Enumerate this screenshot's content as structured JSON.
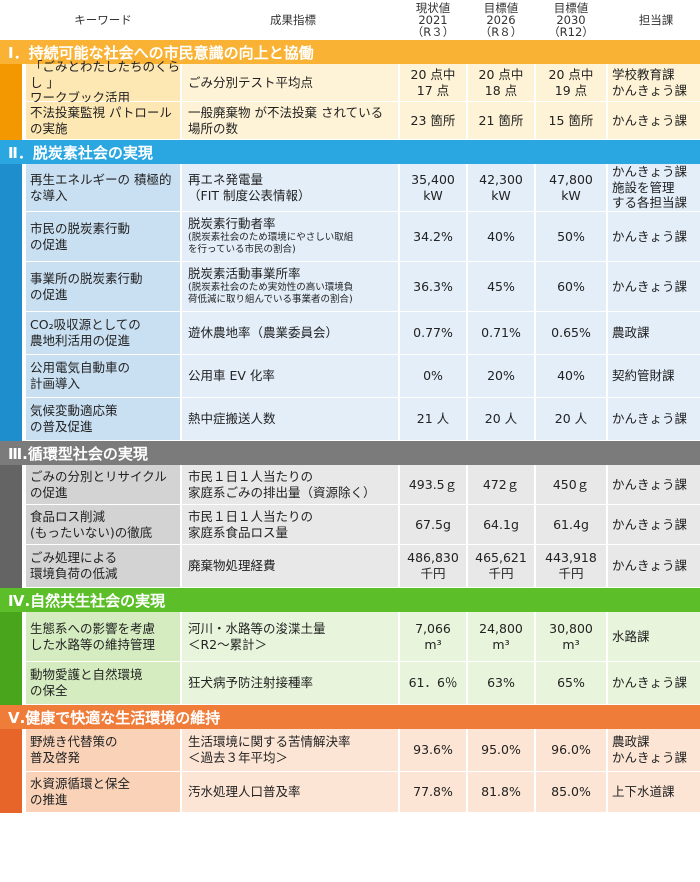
{
  "header": {
    "keyword": "キーワード",
    "indicator": "成果指標",
    "current": [
      "現状値",
      "2021",
      "（R３）"
    ],
    "target2026": [
      "目標値",
      "2026",
      "（R８）"
    ],
    "target2030": [
      "目標値",
      "2030",
      "（R12）"
    ],
    "dept": "担当課"
  },
  "sections": [
    {
      "title": "Ⅰ．持続可能な社会への市民意識の向上と協働",
      "colors": {
        "head": "#f9b233",
        "bar": "#f39800",
        "rowA": "#fde7b3",
        "rowB": "#fef3d6",
        "text": "#ffffff"
      },
      "rows": [
        {
          "keyword": [
            "「ごみとわたしたちのくらし 」",
            "ワークブック活用"
          ],
          "indicator": [
            "ごみ分別テスト平均点"
          ],
          "v1": [
            "20 点中",
            "17 点"
          ],
          "v2": [
            "20 点中",
            "18 点"
          ],
          "v3": [
            "20 点中",
            "19 点"
          ],
          "dept": [
            "学校教育課",
            "かんきょう課"
          ]
        },
        {
          "keyword": [
            "不法投棄監視 パトロール",
            "の実施"
          ],
          "indicator": [
            "一般廃棄物 が不法投棄 されている",
            "場所の数"
          ],
          "v1": [
            "23 箇所"
          ],
          "v2": [
            "21 箇所"
          ],
          "v3": [
            "15 箇所"
          ],
          "dept": [
            "かんきょう課"
          ]
        }
      ]
    },
    {
      "title": "Ⅱ．脱炭素社会の実現",
      "colors": {
        "head": "#2aa7e0",
        "bar": "#1e8fcc",
        "rowA": "#c9dff2",
        "rowB": "#e3eef9",
        "text": "#ffffff"
      },
      "rows": [
        {
          "keyword": [
            "再生エネルギーの 積極的",
            "な導入"
          ],
          "indicator": [
            "再エネ発電量",
            "（FIT 制度公表情報）"
          ],
          "v1": [
            "35,400",
            "kW"
          ],
          "v2": [
            "42,300",
            "kW"
          ],
          "v3": [
            "47,800",
            "kW"
          ],
          "dept": [
            "かんきょう課",
            "施設を管理",
            "する各担当課"
          ]
        },
        {
          "keyword": [
            "市民の脱炭素行動",
            "の促進"
          ],
          "indicator": [
            "脱炭素行動者率"
          ],
          "indicator_note": [
            "(脱炭素社会のため環境にやさしい取組",
            "を行っている市民の割合)"
          ],
          "v1": [
            "34.2%"
          ],
          "v2": [
            "40%"
          ],
          "v3": [
            "50%"
          ],
          "dept": [
            "かんきょう課"
          ]
        },
        {
          "keyword": [
            "事業所の脱炭素行動",
            "の促進"
          ],
          "indicator": [
            "脱炭素活動事業所率"
          ],
          "indicator_note": [
            "(脱炭素社会のため実効性の高い環境負",
            "荷低減に取り組んでいる事業者の割合)"
          ],
          "v1": [
            "36.3%"
          ],
          "v2": [
            "45%"
          ],
          "v3": [
            "60%"
          ],
          "dept": [
            "かんきょう課"
          ]
        },
        {
          "keyword": [
            "CO₂吸収源としての",
            "農地利活用の促進"
          ],
          "indicator": [
            "遊休農地率（農業委員会）"
          ],
          "v1": [
            "0.77%"
          ],
          "v2": [
            "0.71%"
          ],
          "v3": [
            "0.65%"
          ],
          "dept": [
            "農政課"
          ]
        },
        {
          "keyword": [
            "公用電気自動車の",
            "計画導入"
          ],
          "indicator": [
            "公用車 EV 化率"
          ],
          "v1": [
            "0%"
          ],
          "v2": [
            "20%"
          ],
          "v3": [
            "40%"
          ],
          "dept": [
            "契約管財課"
          ]
        },
        {
          "keyword": [
            "気候変動適応策",
            "の普及促進"
          ],
          "indicator": [
            "熱中症搬送人数"
          ],
          "v1": [
            "21 人"
          ],
          "v2": [
            "20 人"
          ],
          "v3": [
            "20 人"
          ],
          "dept": [
            "かんきょう課"
          ]
        }
      ]
    },
    {
      "title": "Ⅲ.循環型社会の実現",
      "colors": {
        "head": "#7b7b7b",
        "bar": "#646464",
        "rowA": "#d3d3d3",
        "rowB": "#e8e8e8",
        "text": "#ffffff"
      },
      "rows": [
        {
          "keyword": [
            "ごみの分別とリサイクル",
            "の促進"
          ],
          "indicator": [
            "市民１日１人当たりの",
            "家庭系ごみの排出量（資源除く）"
          ],
          "v1": [
            "493.5ｇ"
          ],
          "v2": [
            "472ｇ"
          ],
          "v3": [
            "450ｇ"
          ],
          "dept": [
            "かんきょう課"
          ]
        },
        {
          "keyword": [
            "食品ロス削減",
            "(もったいない)の徹底"
          ],
          "indicator": [
            "市民１日１人当たりの",
            "家庭系食品ロス量"
          ],
          "v1": [
            "67.5g"
          ],
          "v2": [
            "64.1g"
          ],
          "v3": [
            "61.4g"
          ],
          "dept": [
            "かんきょう課"
          ]
        },
        {
          "keyword": [
            "ごみ処理による",
            "環境負荷の低減"
          ],
          "indicator": [
            "廃棄物処理経費"
          ],
          "v1": [
            "486,830",
            "千円"
          ],
          "v2": [
            "465,621",
            "千円"
          ],
          "v3": [
            "443,918",
            "千円"
          ],
          "dept": [
            "かんきょう課"
          ]
        }
      ]
    },
    {
      "title": "Ⅳ.自然共生社会の実現",
      "colors": {
        "head": "#5cbf2a",
        "bar": "#48a51c",
        "rowA": "#d5ecc0",
        "rowB": "#e8f5dc",
        "text": "#ffffff"
      },
      "rows": [
        {
          "keyword": [
            "生態系への影響を考慮",
            "した水路等の維持管理"
          ],
          "indicator": [
            "河川・水路等の浚渫土量",
            "＜R2～累計＞"
          ],
          "v1": [
            "7,066",
            "m³"
          ],
          "v2": [
            "24,800",
            "m³"
          ],
          "v3": [
            "30,800",
            "m³"
          ],
          "dept": [
            "水路課"
          ]
        },
        {
          "keyword": [
            "動物愛護と自然環境",
            "の保全"
          ],
          "indicator": [
            "狂犬病予防注射接種率"
          ],
          "v1": [
            "61．6％"
          ],
          "v2": [
            "63%"
          ],
          "v3": [
            "65%"
          ],
          "dept": [
            "かんきょう課"
          ]
        }
      ]
    },
    {
      "title": "Ⅴ.健康で快適な生活環境の維持",
      "colors": {
        "head": "#f07c3a",
        "bar": "#e8652a",
        "rowA": "#f9d2b8",
        "rowB": "#fce5d5",
        "text": "#ffffff"
      },
      "rows": [
        {
          "keyword": [
            "野焼き代替策の",
            "普及啓発"
          ],
          "indicator": [
            "生活環境に関する苦情解決率",
            "＜過去３年平均＞"
          ],
          "v1": [
            "93.6%"
          ],
          "v2": [
            "95.0%"
          ],
          "v3": [
            "96.0%"
          ],
          "dept": [
            "農政課",
            "かんきょう課"
          ]
        },
        {
          "keyword": [
            "水資源循環と保全",
            "の推進"
          ],
          "indicator": [
            "汚水処理人口普及率"
          ],
          "v1": [
            "77.8%"
          ],
          "v2": [
            "81.8%"
          ],
          "v3": [
            "85.0%"
          ],
          "dept": [
            "上下水道課"
          ]
        }
      ]
    }
  ]
}
